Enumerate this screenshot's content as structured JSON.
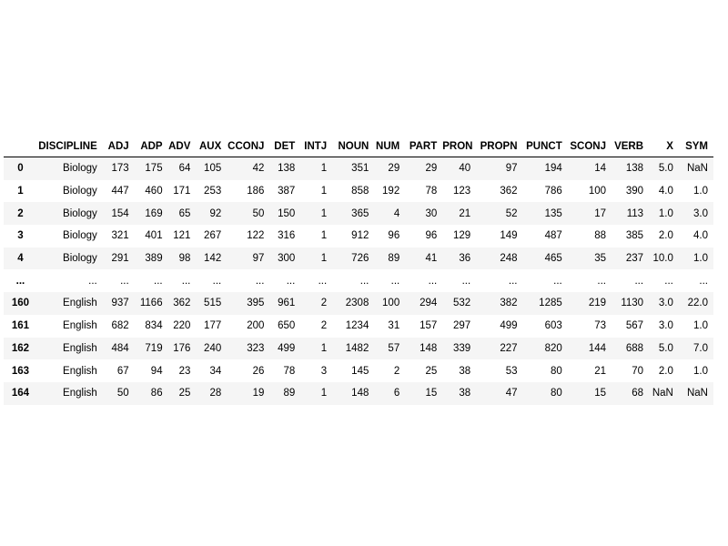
{
  "table": {
    "index_header": "",
    "columns": [
      "DISCIPLINE",
      "ADJ",
      "ADP",
      "ADV",
      "AUX",
      "CCONJ",
      "DET",
      "INTJ",
      "NOUN",
      "NUM",
      "PART",
      "PRON",
      "PROPN",
      "PUNCT",
      "SCONJ",
      "VERB",
      "X",
      "SYM"
    ],
    "rows": [
      {
        "index": "0",
        "cells": [
          "Biology",
          "173",
          "175",
          "64",
          "105",
          "42",
          "138",
          "1",
          "351",
          "29",
          "29",
          "40",
          "97",
          "194",
          "14",
          "138",
          "5.0",
          "NaN"
        ]
      },
      {
        "index": "1",
        "cells": [
          "Biology",
          "447",
          "460",
          "171",
          "253",
          "186",
          "387",
          "1",
          "858",
          "192",
          "78",
          "123",
          "362",
          "786",
          "100",
          "390",
          "4.0",
          "1.0"
        ]
      },
      {
        "index": "2",
        "cells": [
          "Biology",
          "154",
          "169",
          "65",
          "92",
          "50",
          "150",
          "1",
          "365",
          "4",
          "30",
          "21",
          "52",
          "135",
          "17",
          "113",
          "1.0",
          "3.0"
        ]
      },
      {
        "index": "3",
        "cells": [
          "Biology",
          "321",
          "401",
          "121",
          "267",
          "122",
          "316",
          "1",
          "912",
          "96",
          "96",
          "129",
          "149",
          "487",
          "88",
          "385",
          "2.0",
          "4.0"
        ]
      },
      {
        "index": "4",
        "cells": [
          "Biology",
          "291",
          "389",
          "98",
          "142",
          "97",
          "300",
          "1",
          "726",
          "89",
          "41",
          "36",
          "248",
          "465",
          "35",
          "237",
          "10.0",
          "1.0"
        ]
      },
      {
        "index": "...",
        "cells": [
          "...",
          "...",
          "...",
          "...",
          "...",
          "...",
          "...",
          "...",
          "...",
          "...",
          "...",
          "...",
          "...",
          "...",
          "...",
          "...",
          "...",
          "..."
        ]
      },
      {
        "index": "160",
        "cells": [
          "English",
          "937",
          "1166",
          "362",
          "515",
          "395",
          "961",
          "2",
          "2308",
          "100",
          "294",
          "532",
          "382",
          "1285",
          "219",
          "1130",
          "3.0",
          "22.0"
        ]
      },
      {
        "index": "161",
        "cells": [
          "English",
          "682",
          "834",
          "220",
          "177",
          "200",
          "650",
          "2",
          "1234",
          "31",
          "157",
          "297",
          "499",
          "603",
          "73",
          "567",
          "3.0",
          "1.0"
        ]
      },
      {
        "index": "162",
        "cells": [
          "English",
          "484",
          "719",
          "176",
          "240",
          "323",
          "499",
          "1",
          "1482",
          "57",
          "148",
          "339",
          "227",
          "820",
          "144",
          "688",
          "5.0",
          "7.0"
        ]
      },
      {
        "index": "163",
        "cells": [
          "English",
          "67",
          "94",
          "23",
          "34",
          "26",
          "78",
          "3",
          "145",
          "2",
          "25",
          "38",
          "53",
          "80",
          "21",
          "70",
          "2.0",
          "1.0"
        ]
      },
      {
        "index": "164",
        "cells": [
          "English",
          "50",
          "86",
          "25",
          "28",
          "19",
          "89",
          "1",
          "148",
          "6",
          "15",
          "38",
          "47",
          "80",
          "15",
          "68",
          "NaN",
          "NaN"
        ]
      }
    ]
  }
}
